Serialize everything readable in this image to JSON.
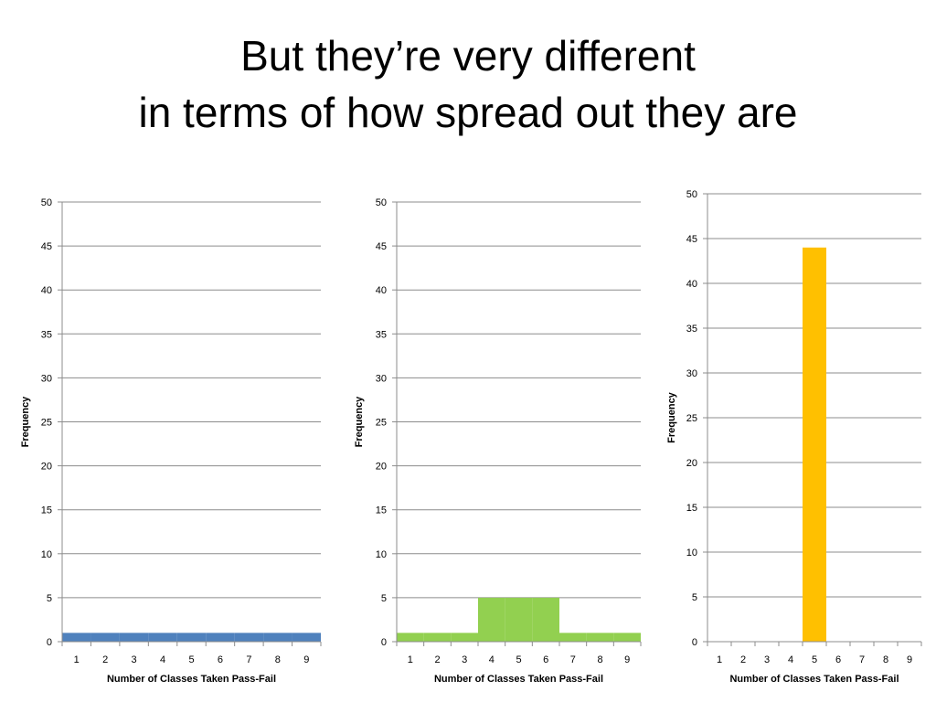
{
  "slide": {
    "title_line1": "But they’re very different",
    "title_line2": "in terms of how spread out they are"
  },
  "chart_data": [
    {
      "type": "bar",
      "xlabel": "Number of Classes Taken Pass-Fail",
      "ylabel": "Frequency",
      "categories": [
        "1",
        "2",
        "3",
        "4",
        "5",
        "6",
        "7",
        "8",
        "9"
      ],
      "values": [
        1,
        1,
        1,
        1,
        1,
        1,
        1,
        1,
        1
      ],
      "ylim": [
        0,
        50
      ],
      "yticks": [
        0,
        5,
        10,
        15,
        20,
        25,
        30,
        35,
        40,
        45,
        50
      ],
      "grid": true,
      "color": "#4f81bd"
    },
    {
      "type": "bar",
      "xlabel": "Number of Classes Taken Pass-Fail",
      "ylabel": "Frequency",
      "categories": [
        "1",
        "2",
        "3",
        "4",
        "5",
        "6",
        "7",
        "8",
        "9"
      ],
      "values": [
        1,
        1,
        1,
        5,
        5,
        5,
        1,
        1,
        1
      ],
      "ylim": [
        0,
        50
      ],
      "yticks": [
        0,
        5,
        10,
        15,
        20,
        25,
        30,
        35,
        40,
        45,
        50
      ],
      "grid": true,
      "color": "#92d050"
    },
    {
      "type": "bar",
      "xlabel": "Number of Classes Taken Pass-Fail",
      "ylabel": "Frequency",
      "categories": [
        "1",
        "2",
        "3",
        "4",
        "5",
        "6",
        "7",
        "8",
        "9"
      ],
      "values": [
        0,
        0,
        0,
        0,
        44,
        0,
        0,
        0,
        0
      ],
      "ylim": [
        0,
        50
      ],
      "yticks": [
        0,
        5,
        10,
        15,
        20,
        25,
        30,
        35,
        40,
        45,
        50
      ],
      "grid": true,
      "color": "#ffc000"
    }
  ]
}
